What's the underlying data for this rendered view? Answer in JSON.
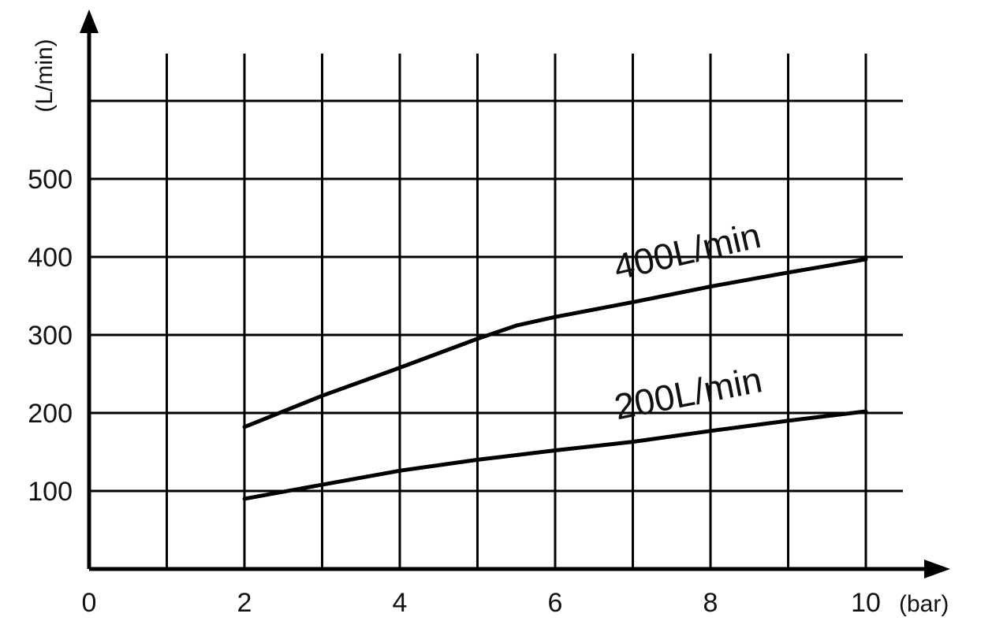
{
  "chart_data": {
    "type": "line",
    "title": "",
    "xlabel": "(bar)",
    "ylabel": "(L/min)",
    "xlim": [
      0,
      10
    ],
    "ylim": [
      0,
      600
    ],
    "x_ticks": [
      0,
      2,
      4,
      6,
      8,
      10
    ],
    "x_tick_labels": [
      "0",
      "2",
      "4",
      "6",
      "8",
      "10"
    ],
    "y_ticks": [
      100,
      200,
      300,
      400,
      500
    ],
    "y_tick_labels": [
      "100",
      "200",
      "300",
      "400",
      "500"
    ],
    "grid": true,
    "x_grid_step": 1,
    "y_grid_step": 100,
    "legend": "none",
    "series": [
      {
        "name": "400L/min",
        "x": [
          2,
          3,
          4,
          5,
          5.5,
          6,
          7,
          8,
          9,
          10
        ],
        "y": [
          182,
          222,
          258,
          295,
          312,
          323,
          342,
          362,
          380,
          397
        ]
      },
      {
        "name": "200L/min",
        "x": [
          2,
          3,
          4,
          5,
          6,
          7,
          8,
          9,
          10
        ],
        "y": [
          90,
          108,
          126,
          140,
          152,
          163,
          177,
          190,
          202
        ]
      }
    ]
  }
}
